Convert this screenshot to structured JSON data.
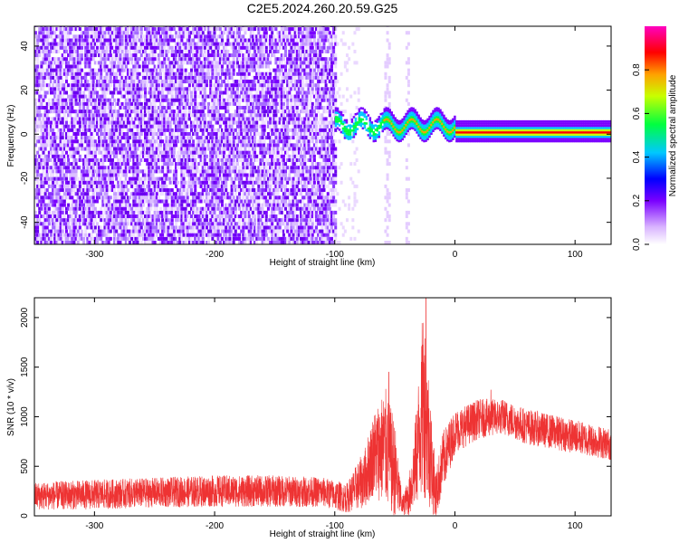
{
  "chart_data": [
    {
      "type": "heatmap",
      "title": "C2E5.2024.260.20.59.G25",
      "xlabel": "Height of straight line (km)",
      "ylabel": "Frequency (Hz)",
      "xlim": [
        -350,
        130
      ],
      "ylim": [
        -50,
        49
      ],
      "xticks": [
        -300,
        -200,
        -100,
        0,
        100
      ],
      "yticks": [
        -40,
        -20,
        0,
        20,
        40
      ],
      "colorbar": {
        "label": "Normalized spectral amplitude",
        "ticks": [
          "0.0",
          "0.2",
          "0.4",
          "0.6",
          "0.8"
        ],
        "range": [
          0,
          1
        ],
        "colormap": [
          "#ffffff",
          "#d9b3ff",
          "#7a00ff",
          "#0000ff",
          "#00c8ff",
          "#00ff40",
          "#c8ff00",
          "#ffa000",
          "#ff0000",
          "#ff00c0"
        ]
      },
      "features": {
        "noise_region_x": [
          -350,
          -100
        ],
        "sparse_columns_x": [
          -57,
          -40
        ],
        "tone_region_x": [
          -100,
          130
        ],
        "tone_frequency_hz": 0.5
      }
    },
    {
      "type": "line",
      "xlabel": "Height of straight line (km)",
      "ylabel": "SNR (10 * v/v)",
      "xlim": [
        -350,
        130
      ],
      "ylim": [
        0,
        2200
      ],
      "xticks": [
        -300,
        -200,
        -100,
        0,
        100
      ],
      "yticks": [
        0,
        500,
        1000,
        1500,
        2000
      ],
      "series": [
        {
          "color": "#ee3333",
          "envelope": [
            {
              "x": -350,
              "mean": 200,
              "amp": 140
            },
            {
              "x": -300,
              "mean": 215,
              "amp": 150
            },
            {
              "x": -250,
              "mean": 235,
              "amp": 150
            },
            {
              "x": -200,
              "mean": 250,
              "amp": 160
            },
            {
              "x": -150,
              "mean": 250,
              "amp": 160
            },
            {
              "x": -110,
              "mean": 240,
              "amp": 150
            },
            {
              "x": -90,
              "mean": 180,
              "amp": 150
            },
            {
              "x": -75,
              "mean": 380,
              "amp": 300
            },
            {
              "x": -68,
              "mean": 620,
              "amp": 420
            },
            {
              "x": -58,
              "mean": 700,
              "amp": 600
            },
            {
              "x": -50,
              "mean": 450,
              "amp": 500
            },
            {
              "x": -44,
              "mean": 100,
              "amp": 90
            },
            {
              "x": -38,
              "mean": 200,
              "amp": 200
            },
            {
              "x": -32,
              "mean": 600,
              "amp": 500
            },
            {
              "x": -26,
              "mean": 1200,
              "amp": 1000
            },
            {
              "x": -22,
              "mean": 800,
              "amp": 700
            },
            {
              "x": -16,
              "mean": 200,
              "amp": 250
            },
            {
              "x": -10,
              "mean": 550,
              "amp": 300
            },
            {
              "x": 0,
              "mean": 850,
              "amp": 220
            },
            {
              "x": 20,
              "mean": 980,
              "amp": 200
            },
            {
              "x": 40,
              "mean": 1000,
              "amp": 180
            },
            {
              "x": 60,
              "mean": 900,
              "amp": 180
            },
            {
              "x": 100,
              "mean": 800,
              "amp": 170
            },
            {
              "x": 130,
              "mean": 720,
              "amp": 160
            }
          ],
          "peaks": [
            {
              "x": -24,
              "y": 2200
            },
            {
              "x": -28,
              "y": 1550
            },
            {
              "x": -55,
              "y": 1450
            },
            {
              "x": 30,
              "y": 1270
            }
          ]
        }
      ]
    }
  ]
}
